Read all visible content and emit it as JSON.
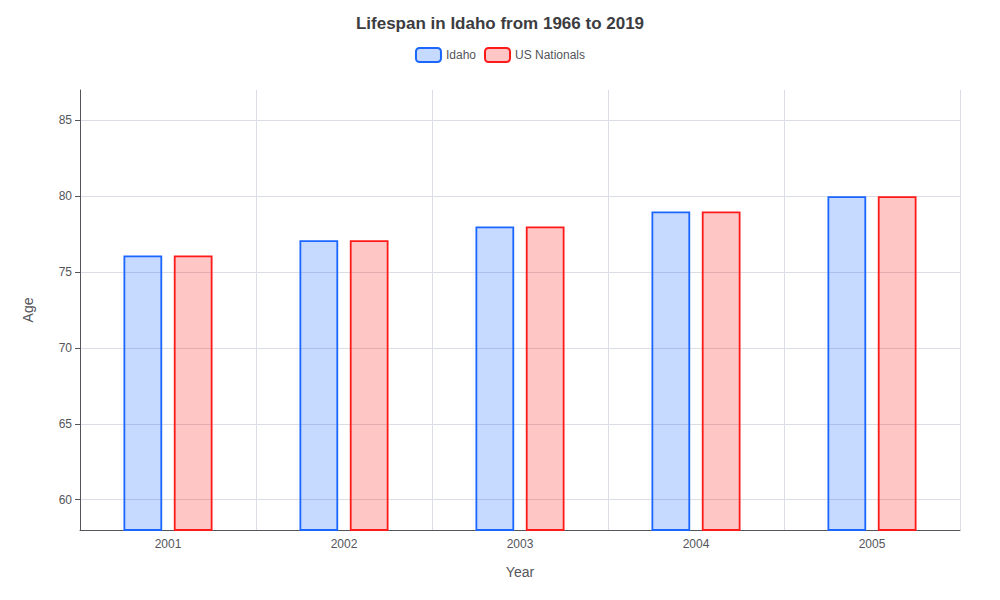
{
  "chart_data": {
    "type": "bar",
    "title": "Lifespan in Idaho from 1966 to 2019",
    "x_label": "Year",
    "y_label": "Age",
    "categories": [
      "2001",
      "2002",
      "2003",
      "2004",
      "2005"
    ],
    "series": [
      {
        "name": "Idaho",
        "color": "#1a66ff",
        "values": [
          76.1,
          77.1,
          78.0,
          79.0,
          80.0
        ]
      },
      {
        "name": "US Nationals",
        "color": "#ff1a1a",
        "values": [
          76.1,
          77.1,
          78.0,
          79.0,
          80.0
        ]
      }
    ],
    "ylim": [
      58,
      87
    ],
    "yticks": [
      60,
      65,
      70,
      75,
      80,
      85
    ],
    "grid": true,
    "legend": "top"
  }
}
